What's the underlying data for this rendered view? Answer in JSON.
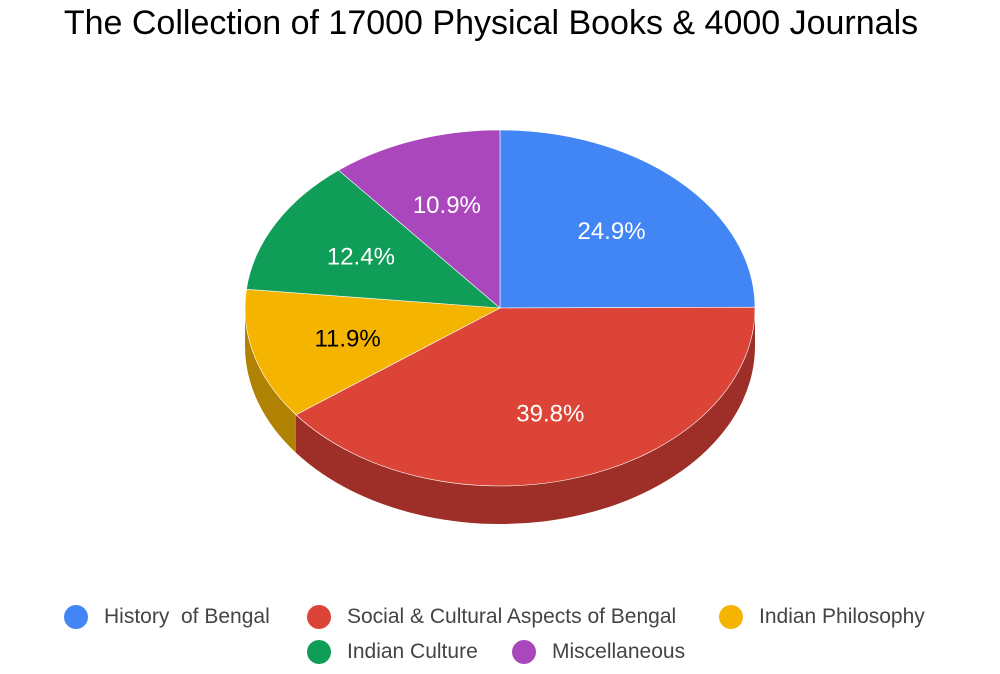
{
  "chart_data": {
    "type": "pie",
    "title": "The Collection of 17000 Physical Books & 4000 Journals",
    "style": "3d",
    "legend_position": "bottom",
    "slices": [
      {
        "label": "History  of Bengal",
        "value": 24.9,
        "display": "24.9%",
        "color": "#4285F4",
        "side_color": "#3367C8",
        "label_color": "#ffffff"
      },
      {
        "label": "Social & Cultural Aspects of Bengal",
        "value": 39.8,
        "display": "39.8%",
        "color": "#DB4437",
        "side_color": "#9E2F28",
        "label_color": "#ffffff"
      },
      {
        "label": "Indian Philosophy",
        "value": 11.9,
        "display": "11.9%",
        "color": "#F4B400",
        "side_color": "#B08203",
        "label_color": "#000000"
      },
      {
        "label": "Indian Culture",
        "value": 12.4,
        "display": "12.4%",
        "color": "#0F9D58",
        "side_color": "#0B7140",
        "label_color": "#ffffff"
      },
      {
        "label": "Miscellaneous",
        "value": 10.9,
        "display": "10.9%",
        "color": "#AB47BC",
        "side_color": "#7B3388",
        "label_color": "#ffffff"
      }
    ]
  }
}
